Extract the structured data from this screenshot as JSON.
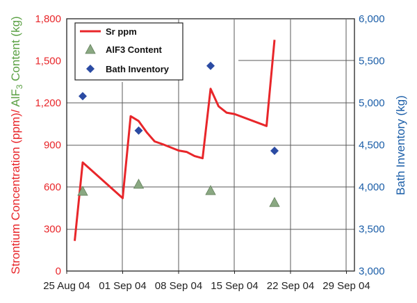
{
  "chart_data": {
    "type": "line",
    "x_ticks": [
      "25 Aug 04",
      "01 Sep 04",
      "08 Sep 04",
      "15 Sep 04",
      "22 Sep 04",
      "29 Sep 04"
    ],
    "x_range": [
      "2004-08-25",
      "2004-09-30"
    ],
    "y_left": {
      "label_parts": [
        "Strontium Concentration (ppm)/ ",
        "AlF",
        "3",
        " Content (kg)"
      ],
      "ticks": [
        "0",
        "300",
        "600",
        "900",
        "1,200",
        "1,500",
        "1,800"
      ],
      "range": [
        0,
        1800
      ]
    },
    "y_right": {
      "label": "Bath Inventory (kg)",
      "ticks": [
        "3,000",
        "3,500",
        "4,000",
        "4,500",
        "5,000",
        "5,500",
        "6,000"
      ],
      "range": [
        3000,
        6000
      ]
    },
    "grid": "partial",
    "legend_position": "top-left",
    "series": [
      {
        "name": "Sr ppm",
        "axis": "left",
        "marker": "line",
        "color": "#e8262a",
        "points": [
          [
            "2004-08-26",
            215
          ],
          [
            "2004-08-27",
            775
          ],
          [
            "2004-09-01",
            520
          ],
          [
            "2004-09-02",
            1105
          ],
          [
            "2004-09-03",
            1070
          ],
          [
            "2004-09-04",
            990
          ],
          [
            "2004-09-05",
            925
          ],
          [
            "2004-09-06",
            905
          ],
          [
            "2004-09-08",
            860
          ],
          [
            "2004-09-09",
            850
          ],
          [
            "2004-09-10",
            820
          ],
          [
            "2004-09-11",
            805
          ],
          [
            "2004-09-12",
            1300
          ],
          [
            "2004-09-13",
            1175
          ],
          [
            "2004-09-14",
            1130
          ],
          [
            "2004-09-15",
            1120
          ],
          [
            "2004-09-19",
            1035
          ],
          [
            "2004-09-20",
            1650
          ]
        ]
      },
      {
        "name": "AlF3 Content",
        "axis": "left",
        "marker": "triangle",
        "color": "#8aa882",
        "points": [
          [
            "2004-08-27",
            570
          ],
          [
            "2004-09-03",
            620
          ],
          [
            "2004-09-12",
            575
          ],
          [
            "2004-09-20",
            490
          ]
        ]
      },
      {
        "name": "Bath Inventory",
        "axis": "right",
        "marker": "diamond",
        "color": "#2b4ba3",
        "points": [
          [
            "2004-08-27",
            5080
          ],
          [
            "2004-09-03",
            4670
          ],
          [
            "2004-09-12",
            5440
          ],
          [
            "2004-09-20",
            4430
          ]
        ]
      }
    ],
    "colors": {
      "left_axis_label": "#e8262a",
      "alf3_label": "#5aa043",
      "right_axis": "#1b5ea8",
      "grid": "#555555"
    }
  }
}
